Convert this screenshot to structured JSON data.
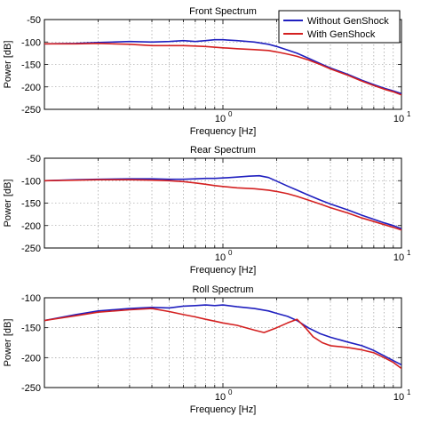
{
  "chart_data": [
    {
      "type": "line",
      "title": "Front Spectrum",
      "xlabel": "Frequency [Hz]",
      "ylabel": "Power [dB]",
      "xscale": "log",
      "xlim": [
        0.1,
        10
      ],
      "ylim": [
        -250,
        -50
      ],
      "yticks": [
        -50,
        -100,
        -150,
        -200,
        -250
      ],
      "xtick_labels": [
        {
          "base": "10",
          "exp": "0",
          "value": 1
        },
        {
          "base": "10",
          "exp": "1",
          "value": 10
        }
      ],
      "grid": true,
      "legend": "top-right",
      "series": [
        {
          "name": "Without GenShock",
          "color": "#1f1fbf",
          "points": [
            [
              0.1,
              -104
            ],
            [
              0.15,
              -103
            ],
            [
              0.2,
              -101
            ],
            [
              0.3,
              -99
            ],
            [
              0.4,
              -100
            ],
            [
              0.5,
              -99
            ],
            [
              0.6,
              -97
            ],
            [
              0.7,
              -99
            ],
            [
              0.8,
              -97
            ],
            [
              0.9,
              -95
            ],
            [
              1.0,
              -95
            ],
            [
              1.2,
              -97
            ],
            [
              1.5,
              -100
            ],
            [
              1.8,
              -105
            ],
            [
              2.0,
              -110
            ],
            [
              2.3,
              -118
            ],
            [
              2.6,
              -125
            ],
            [
              3.0,
              -136
            ],
            [
              3.5,
              -148
            ],
            [
              4.0,
              -158
            ],
            [
              5.0,
              -172
            ],
            [
              6.0,
              -185
            ],
            [
              7.0,
              -195
            ],
            [
              8.0,
              -203
            ],
            [
              9.0,
              -209
            ],
            [
              10.0,
              -215
            ]
          ]
        },
        {
          "name": "With GenShock",
          "color": "#d42020",
          "points": [
            [
              0.1,
              -104
            ],
            [
              0.15,
              -104
            ],
            [
              0.2,
              -103
            ],
            [
              0.3,
              -105
            ],
            [
              0.4,
              -108
            ],
            [
              0.5,
              -108
            ],
            [
              0.6,
              -108
            ],
            [
              0.7,
              -109
            ],
            [
              0.8,
              -110
            ],
            [
              1.0,
              -113
            ],
            [
              1.2,
              -115
            ],
            [
              1.5,
              -117
            ],
            [
              1.8,
              -119
            ],
            [
              2.0,
              -122
            ],
            [
              2.3,
              -127
            ],
            [
              2.6,
              -132
            ],
            [
              3.0,
              -140
            ],
            [
              3.5,
              -150
            ],
            [
              4.0,
              -160
            ],
            [
              5.0,
              -174
            ],
            [
              6.0,
              -187
            ],
            [
              7.0,
              -197
            ],
            [
              8.0,
              -205
            ],
            [
              9.0,
              -211
            ],
            [
              10.0,
              -218
            ]
          ]
        }
      ]
    },
    {
      "type": "line",
      "title": "Rear Spectrum",
      "xlabel": "Frequency [Hz]",
      "ylabel": "Power [dB]",
      "xscale": "log",
      "xlim": [
        0.1,
        10
      ],
      "ylim": [
        -250,
        -50
      ],
      "yticks": [
        -50,
        -100,
        -150,
        -200,
        -250
      ],
      "xtick_labels": [
        {
          "base": "10",
          "exp": "0",
          "value": 1
        },
        {
          "base": "10",
          "exp": "1",
          "value": 10
        }
      ],
      "grid": true,
      "series": [
        {
          "name": "Without GenShock",
          "color": "#1f1fbf",
          "points": [
            [
              0.1,
              -100
            ],
            [
              0.15,
              -98
            ],
            [
              0.2,
              -97
            ],
            [
              0.3,
              -96
            ],
            [
              0.4,
              -96
            ],
            [
              0.5,
              -97
            ],
            [
              0.6,
              -97
            ],
            [
              0.7,
              -96
            ],
            [
              0.8,
              -95
            ],
            [
              0.9,
              -95
            ],
            [
              1.0,
              -94
            ],
            [
              1.2,
              -92
            ],
            [
              1.4,
              -90
            ],
            [
              1.6,
              -89
            ],
            [
              1.8,
              -93
            ],
            [
              2.0,
              -101
            ],
            [
              2.3,
              -112
            ],
            [
              2.6,
              -121
            ],
            [
              3.0,
              -132
            ],
            [
              3.5,
              -143
            ],
            [
              4.0,
              -152
            ],
            [
              5.0,
              -165
            ],
            [
              6.0,
              -177
            ],
            [
              7.0,
              -186
            ],
            [
              8.0,
              -194
            ],
            [
              9.0,
              -200
            ],
            [
              10.0,
              -207
            ]
          ]
        },
        {
          "name": "With GenShock",
          "color": "#d42020",
          "points": [
            [
              0.1,
              -100
            ],
            [
              0.15,
              -99
            ],
            [
              0.2,
              -98
            ],
            [
              0.3,
              -98
            ],
            [
              0.4,
              -99
            ],
            [
              0.5,
              -100
            ],
            [
              0.6,
              -102
            ],
            [
              0.7,
              -105
            ],
            [
              0.8,
              -108
            ],
            [
              0.9,
              -111
            ],
            [
              1.0,
              -113
            ],
            [
              1.2,
              -116
            ],
            [
              1.5,
              -118
            ],
            [
              1.8,
              -121
            ],
            [
              2.0,
              -124
            ],
            [
              2.3,
              -129
            ],
            [
              2.6,
              -135
            ],
            [
              3.0,
              -143
            ],
            [
              3.5,
              -152
            ],
            [
              4.0,
              -160
            ],
            [
              5.0,
              -172
            ],
            [
              6.0,
              -183
            ],
            [
              7.0,
              -191
            ],
            [
              8.0,
              -198
            ],
            [
              9.0,
              -204
            ],
            [
              10.0,
              -210
            ]
          ]
        }
      ]
    },
    {
      "type": "line",
      "title": "Roll Spectrum",
      "xlabel": "Frequency [Hz]",
      "ylabel": "Power [dB]",
      "xscale": "log",
      "xlim": [
        0.1,
        10
      ],
      "ylim": [
        -250,
        -100
      ],
      "yticks": [
        -100,
        -150,
        -200,
        -250
      ],
      "xtick_labels": [
        {
          "base": "10",
          "exp": "0",
          "value": 1
        },
        {
          "base": "10",
          "exp": "1",
          "value": 10
        }
      ],
      "grid": true,
      "series": [
        {
          "name": "Without GenShock",
          "color": "#1f1fbf",
          "points": [
            [
              0.1,
              -138
            ],
            [
              0.15,
              -128
            ],
            [
              0.2,
              -122
            ],
            [
              0.3,
              -118
            ],
            [
              0.4,
              -116
            ],
            [
              0.5,
              -117
            ],
            [
              0.6,
              -114
            ],
            [
              0.7,
              -113
            ],
            [
              0.8,
              -112
            ],
            [
              0.9,
              -113
            ],
            [
              1.0,
              -112
            ],
            [
              1.2,
              -115
            ],
            [
              1.5,
              -118
            ],
            [
              1.8,
              -122
            ],
            [
              2.0,
              -126
            ],
            [
              2.3,
              -131
            ],
            [
              2.6,
              -138
            ],
            [
              3.0,
              -150
            ],
            [
              3.5,
              -160
            ],
            [
              4.0,
              -166
            ],
            [
              5.0,
              -174
            ],
            [
              6.0,
              -180
            ],
            [
              7.0,
              -188
            ],
            [
              8.0,
              -197
            ],
            [
              9.0,
              -205
            ],
            [
              10.0,
              -212
            ]
          ]
        },
        {
          "name": "With GenShock",
          "color": "#d42020",
          "points": [
            [
              0.1,
              -138
            ],
            [
              0.15,
              -130
            ],
            [
              0.2,
              -124
            ],
            [
              0.3,
              -120
            ],
            [
              0.4,
              -118
            ],
            [
              0.5,
              -123
            ],
            [
              0.6,
              -128
            ],
            [
              0.7,
              -132
            ],
            [
              0.8,
              -136
            ],
            [
              0.9,
              -139
            ],
            [
              1.0,
              -142
            ],
            [
              1.2,
              -146
            ],
            [
              1.5,
              -154
            ],
            [
              1.7,
              -158
            ],
            [
              2.0,
              -150
            ],
            [
              2.3,
              -142
            ],
            [
              2.6,
              -136
            ],
            [
              2.9,
              -150
            ],
            [
              3.2,
              -165
            ],
            [
              3.6,
              -175
            ],
            [
              4.0,
              -180
            ],
            [
              5.0,
              -183
            ],
            [
              6.0,
              -187
            ],
            [
              7.0,
              -192
            ],
            [
              8.0,
              -200
            ],
            [
              9.0,
              -208
            ],
            [
              10.0,
              -218
            ]
          ]
        }
      ]
    }
  ]
}
